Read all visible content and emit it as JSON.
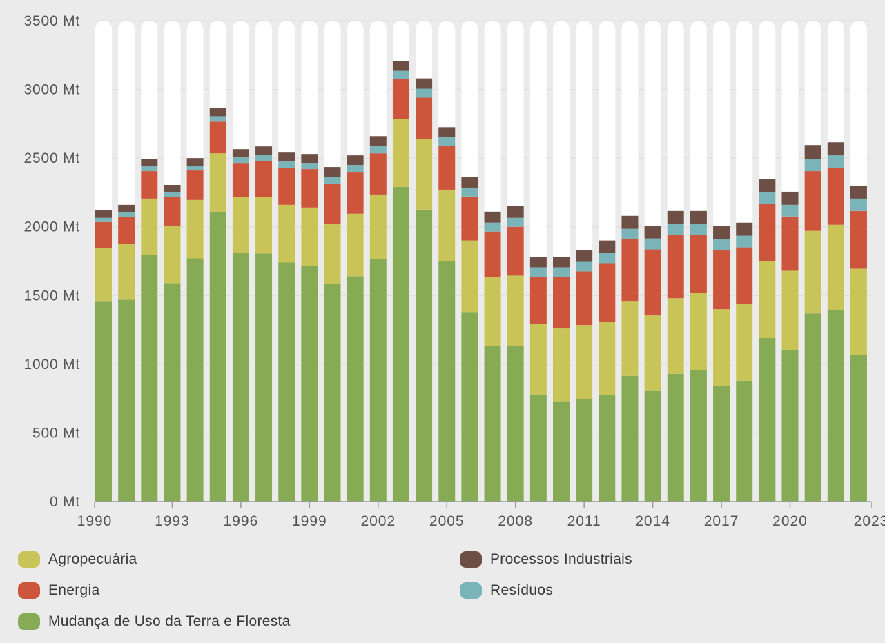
{
  "chart_data": {
    "type": "bar",
    "stacked": true,
    "categories": [
      "1990",
      "1991",
      "1992",
      "1993",
      "1994",
      "1995",
      "1996",
      "1997",
      "1998",
      "1999",
      "2000",
      "2001",
      "2002",
      "2003",
      "2004",
      "2005",
      "2006",
      "2007",
      "2008",
      "2009",
      "2010",
      "2011",
      "2012",
      "2013",
      "2014",
      "2015",
      "2016",
      "2017",
      "2018",
      "2019",
      "2020",
      "2021",
      "2022",
      "2023"
    ],
    "x_tick_labels": [
      "1990",
      "1993",
      "1996",
      "1999",
      "2002",
      "2005",
      "2008",
      "2011",
      "2014",
      "2017",
      "2020",
      "2023"
    ],
    "y_ticks": [
      0,
      500,
      1000,
      1500,
      2000,
      2500,
      3000,
      3500
    ],
    "y_unit": "Mt",
    "ylim": [
      0,
      3500
    ],
    "grid": true,
    "legend_position": "bottom",
    "series": [
      {
        "name": "Mudança de Uso da Terra e Floresta",
        "color": "#87aa55",
        "values": [
          1455,
          1470,
          1795,
          1590,
          1770,
          2105,
          1810,
          1805,
          1740,
          1715,
          1585,
          1640,
          1765,
          2290,
          2125,
          1750,
          1380,
          1130,
          1130,
          780,
          730,
          745,
          775,
          915,
          805,
          930,
          955,
          840,
          880,
          1190,
          1105,
          1370,
          1395,
          1065
        ]
      },
      {
        "name": "Agropecuária",
        "color": "#c8c458",
        "values": [
          390,
          405,
          410,
          415,
          425,
          430,
          405,
          410,
          420,
          425,
          435,
          455,
          470,
          495,
          515,
          520,
          520,
          505,
          515,
          515,
          530,
          540,
          535,
          540,
          550,
          550,
          565,
          560,
          560,
          560,
          575,
          600,
          620,
          630
        ]
      },
      {
        "name": "Energia",
        "color": "#cc553b",
        "values": [
          190,
          195,
          200,
          210,
          215,
          230,
          250,
          265,
          270,
          280,
          295,
          300,
          300,
          290,
          300,
          320,
          320,
          330,
          355,
          340,
          375,
          390,
          425,
          455,
          480,
          460,
          420,
          430,
          410,
          415,
          395,
          435,
          415,
          420
        ]
      },
      {
        "name": "Resíduos",
        "color": "#7ab4b9",
        "values": [
          30,
          35,
          35,
          35,
          35,
          40,
          40,
          45,
          45,
          45,
          50,
          55,
          55,
          60,
          65,
          65,
          65,
          65,
          65,
          70,
          70,
          70,
          75,
          75,
          80,
          80,
          80,
          80,
          85,
          85,
          85,
          90,
          90,
          90
        ]
      },
      {
        "name": "Processos Industriais",
        "color": "#6d4f45",
        "values": [
          55,
          55,
          55,
          55,
          55,
          60,
          60,
          60,
          65,
          65,
          70,
          70,
          70,
          70,
          75,
          70,
          75,
          80,
          85,
          75,
          75,
          85,
          90,
          95,
          90,
          95,
          95,
          95,
          95,
          95,
          95,
          100,
          95,
          95
        ]
      }
    ]
  },
  "legend": {
    "agro": {
      "label": "Agropecuária",
      "color": "#c8c458"
    },
    "energia": {
      "label": "Energia",
      "color": "#cc553b"
    },
    "mudanca": {
      "label": "Mudança de Uso da Terra e Floresta",
      "color": "#87aa55"
    },
    "processos": {
      "label": "Processos Industriais",
      "color": "#6d4f45"
    },
    "residuos": {
      "label": "Resíduos",
      "color": "#7ab4b9"
    }
  }
}
